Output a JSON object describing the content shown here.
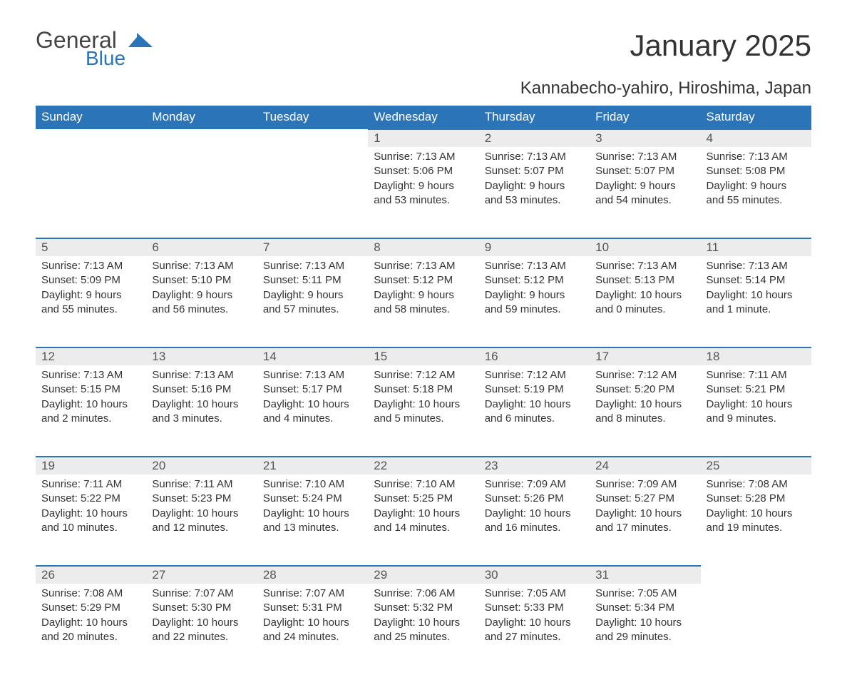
{
  "logo": {
    "text1": "General",
    "text2": "Blue"
  },
  "title": "January 2025",
  "location": "Kannabecho-yahiro, Hiroshima, Japan",
  "colors": {
    "header_bg": "#2b74b8",
    "header_fg": "#ffffff",
    "daynum_bg": "#ececec",
    "border": "#2b74b8",
    "text": "#333333"
  },
  "day_headers": [
    "Sunday",
    "Monday",
    "Tuesday",
    "Wednesday",
    "Thursday",
    "Friday",
    "Saturday"
  ],
  "weeks": [
    [
      null,
      null,
      null,
      {
        "n": "1",
        "sr": "Sunrise: 7:13 AM",
        "ss": "Sunset: 5:06 PM",
        "d1": "Daylight: 9 hours",
        "d2": "and 53 minutes."
      },
      {
        "n": "2",
        "sr": "Sunrise: 7:13 AM",
        "ss": "Sunset: 5:07 PM",
        "d1": "Daylight: 9 hours",
        "d2": "and 53 minutes."
      },
      {
        "n": "3",
        "sr": "Sunrise: 7:13 AM",
        "ss": "Sunset: 5:07 PM",
        "d1": "Daylight: 9 hours",
        "d2": "and 54 minutes."
      },
      {
        "n": "4",
        "sr": "Sunrise: 7:13 AM",
        "ss": "Sunset: 5:08 PM",
        "d1": "Daylight: 9 hours",
        "d2": "and 55 minutes."
      }
    ],
    [
      {
        "n": "5",
        "sr": "Sunrise: 7:13 AM",
        "ss": "Sunset: 5:09 PM",
        "d1": "Daylight: 9 hours",
        "d2": "and 55 minutes."
      },
      {
        "n": "6",
        "sr": "Sunrise: 7:13 AM",
        "ss": "Sunset: 5:10 PM",
        "d1": "Daylight: 9 hours",
        "d2": "and 56 minutes."
      },
      {
        "n": "7",
        "sr": "Sunrise: 7:13 AM",
        "ss": "Sunset: 5:11 PM",
        "d1": "Daylight: 9 hours",
        "d2": "and 57 minutes."
      },
      {
        "n": "8",
        "sr": "Sunrise: 7:13 AM",
        "ss": "Sunset: 5:12 PM",
        "d1": "Daylight: 9 hours",
        "d2": "and 58 minutes."
      },
      {
        "n": "9",
        "sr": "Sunrise: 7:13 AM",
        "ss": "Sunset: 5:12 PM",
        "d1": "Daylight: 9 hours",
        "d2": "and 59 minutes."
      },
      {
        "n": "10",
        "sr": "Sunrise: 7:13 AM",
        "ss": "Sunset: 5:13 PM",
        "d1": "Daylight: 10 hours",
        "d2": "and 0 minutes."
      },
      {
        "n": "11",
        "sr": "Sunrise: 7:13 AM",
        "ss": "Sunset: 5:14 PM",
        "d1": "Daylight: 10 hours",
        "d2": "and 1 minute."
      }
    ],
    [
      {
        "n": "12",
        "sr": "Sunrise: 7:13 AM",
        "ss": "Sunset: 5:15 PM",
        "d1": "Daylight: 10 hours",
        "d2": "and 2 minutes."
      },
      {
        "n": "13",
        "sr": "Sunrise: 7:13 AM",
        "ss": "Sunset: 5:16 PM",
        "d1": "Daylight: 10 hours",
        "d2": "and 3 minutes."
      },
      {
        "n": "14",
        "sr": "Sunrise: 7:13 AM",
        "ss": "Sunset: 5:17 PM",
        "d1": "Daylight: 10 hours",
        "d2": "and 4 minutes."
      },
      {
        "n": "15",
        "sr": "Sunrise: 7:12 AM",
        "ss": "Sunset: 5:18 PM",
        "d1": "Daylight: 10 hours",
        "d2": "and 5 minutes."
      },
      {
        "n": "16",
        "sr": "Sunrise: 7:12 AM",
        "ss": "Sunset: 5:19 PM",
        "d1": "Daylight: 10 hours",
        "d2": "and 6 minutes."
      },
      {
        "n": "17",
        "sr": "Sunrise: 7:12 AM",
        "ss": "Sunset: 5:20 PM",
        "d1": "Daylight: 10 hours",
        "d2": "and 8 minutes."
      },
      {
        "n": "18",
        "sr": "Sunrise: 7:11 AM",
        "ss": "Sunset: 5:21 PM",
        "d1": "Daylight: 10 hours",
        "d2": "and 9 minutes."
      }
    ],
    [
      {
        "n": "19",
        "sr": "Sunrise: 7:11 AM",
        "ss": "Sunset: 5:22 PM",
        "d1": "Daylight: 10 hours",
        "d2": "and 10 minutes."
      },
      {
        "n": "20",
        "sr": "Sunrise: 7:11 AM",
        "ss": "Sunset: 5:23 PM",
        "d1": "Daylight: 10 hours",
        "d2": "and 12 minutes."
      },
      {
        "n": "21",
        "sr": "Sunrise: 7:10 AM",
        "ss": "Sunset: 5:24 PM",
        "d1": "Daylight: 10 hours",
        "d2": "and 13 minutes."
      },
      {
        "n": "22",
        "sr": "Sunrise: 7:10 AM",
        "ss": "Sunset: 5:25 PM",
        "d1": "Daylight: 10 hours",
        "d2": "and 14 minutes."
      },
      {
        "n": "23",
        "sr": "Sunrise: 7:09 AM",
        "ss": "Sunset: 5:26 PM",
        "d1": "Daylight: 10 hours",
        "d2": "and 16 minutes."
      },
      {
        "n": "24",
        "sr": "Sunrise: 7:09 AM",
        "ss": "Sunset: 5:27 PM",
        "d1": "Daylight: 10 hours",
        "d2": "and 17 minutes."
      },
      {
        "n": "25",
        "sr": "Sunrise: 7:08 AM",
        "ss": "Sunset: 5:28 PM",
        "d1": "Daylight: 10 hours",
        "d2": "and 19 minutes."
      }
    ],
    [
      {
        "n": "26",
        "sr": "Sunrise: 7:08 AM",
        "ss": "Sunset: 5:29 PM",
        "d1": "Daylight: 10 hours",
        "d2": "and 20 minutes."
      },
      {
        "n": "27",
        "sr": "Sunrise: 7:07 AM",
        "ss": "Sunset: 5:30 PM",
        "d1": "Daylight: 10 hours",
        "d2": "and 22 minutes."
      },
      {
        "n": "28",
        "sr": "Sunrise: 7:07 AM",
        "ss": "Sunset: 5:31 PM",
        "d1": "Daylight: 10 hours",
        "d2": "and 24 minutes."
      },
      {
        "n": "29",
        "sr": "Sunrise: 7:06 AM",
        "ss": "Sunset: 5:32 PM",
        "d1": "Daylight: 10 hours",
        "d2": "and 25 minutes."
      },
      {
        "n": "30",
        "sr": "Sunrise: 7:05 AM",
        "ss": "Sunset: 5:33 PM",
        "d1": "Daylight: 10 hours",
        "d2": "and 27 minutes."
      },
      {
        "n": "31",
        "sr": "Sunrise: 7:05 AM",
        "ss": "Sunset: 5:34 PM",
        "d1": "Daylight: 10 hours",
        "d2": "and 29 minutes."
      },
      null
    ]
  ]
}
